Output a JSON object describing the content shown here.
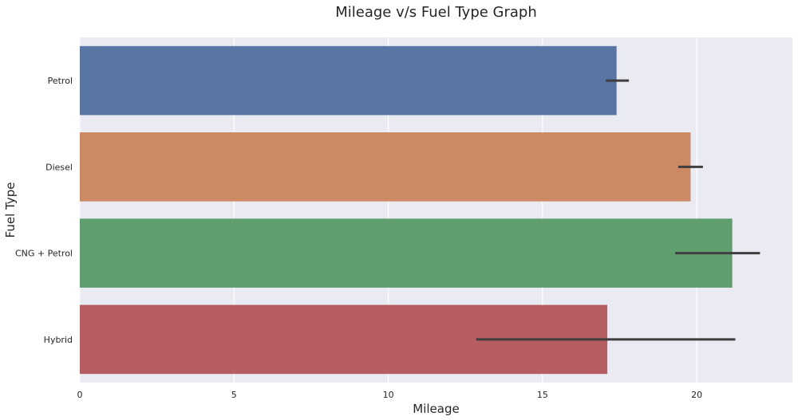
{
  "chart_data": {
    "type": "bar",
    "orientation": "horizontal",
    "title": "Mileage v/s Fuel Type Graph",
    "xlabel": "Mileage",
    "ylabel": "Fuel Type",
    "xlim": [
      0,
      23.1
    ],
    "xticks": [
      "0",
      "5",
      "10",
      "15",
      "20"
    ],
    "grid": true,
    "categories": [
      "Petrol",
      "Diesel",
      "CNG + Petrol",
      "Hybrid"
    ],
    "values": [
      17.4,
      19.8,
      21.15,
      17.1
    ],
    "error_bars": [
      [
        17.05,
        17.8
      ],
      [
        19.4,
        20.2
      ],
      [
        19.3,
        22.05
      ],
      [
        12.85,
        21.25
      ]
    ],
    "colors": [
      "#5975a4",
      "#cc8963",
      "#5f9e6e",
      "#b55d60"
    ]
  }
}
